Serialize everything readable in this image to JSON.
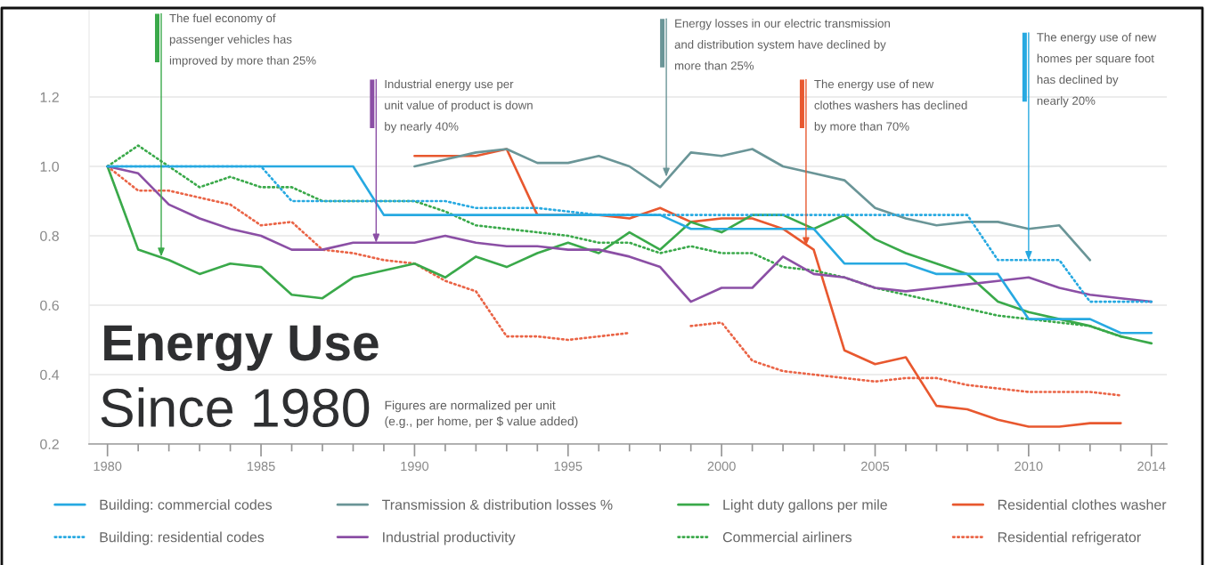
{
  "chart_data": {
    "type": "line",
    "title": "Energy Use",
    "subtitle": "Since 1980",
    "x": [
      1980,
      1981,
      1982,
      1983,
      1984,
      1985,
      1986,
      1987,
      1988,
      1989,
      1990,
      1991,
      1992,
      1993,
      1994,
      1995,
      1996,
      1997,
      1998,
      1999,
      2000,
      2001,
      2002,
      2003,
      2004,
      2005,
      2006,
      2007,
      2008,
      2009,
      2010,
      2011,
      2012,
      2013,
      2014
    ],
    "series": [
      {
        "name": "Building: commercial codes",
        "color": "#27a9e1",
        "line_style": "solid",
        "values": [
          1.0,
          1.0,
          1.0,
          1.0,
          1.0,
          1.0,
          1.0,
          1.0,
          1.0,
          0.86,
          0.86,
          0.86,
          0.86,
          0.86,
          0.86,
          0.86,
          0.86,
          0.86,
          0.86,
          0.82,
          0.82,
          0.82,
          0.82,
          0.82,
          0.72,
          0.72,
          0.72,
          0.69,
          0.69,
          0.69,
          0.56,
          0.56,
          0.56,
          0.52,
          0.52
        ]
      },
      {
        "name": "Building: residential codes",
        "color": "#27a9e1",
        "line_style": "dotted",
        "values": [
          1.0,
          1.0,
          1.0,
          1.0,
          1.0,
          1.0,
          0.9,
          0.9,
          0.9,
          0.9,
          0.9,
          0.9,
          0.88,
          0.88,
          0.88,
          0.87,
          0.86,
          0.86,
          0.86,
          0.86,
          0.86,
          0.86,
          0.86,
          0.86,
          0.86,
          0.86,
          0.86,
          0.86,
          0.86,
          0.73,
          0.73,
          0.73,
          0.61,
          0.61,
          0.61
        ]
      },
      {
        "name": "Transmission & distribution losses %",
        "color": "#6a9597",
        "line_style": "solid",
        "x": [
          1990,
          1991,
          1992,
          1993,
          1994,
          1995,
          1996,
          1997,
          1998,
          1999,
          2000,
          2001,
          2002,
          2003,
          2004,
          2005,
          2006,
          2007,
          2008,
          2009,
          2010,
          2011,
          2012
        ],
        "values": [
          1.0,
          1.02,
          1.04,
          1.05,
          1.01,
          1.01,
          1.03,
          1.0,
          0.94,
          1.04,
          1.03,
          1.05,
          1.0,
          0.98,
          0.96,
          0.88,
          0.85,
          0.83,
          0.84,
          0.84,
          0.82,
          0.83,
          0.73
        ]
      },
      {
        "name": "Industrial productivity",
        "color": "#8b4fa5",
        "line_style": "solid",
        "values": [
          1.0,
          0.98,
          0.89,
          0.85,
          0.82,
          0.8,
          0.76,
          0.76,
          0.78,
          0.78,
          0.78,
          0.8,
          0.78,
          0.77,
          0.77,
          0.76,
          0.76,
          0.74,
          0.71,
          0.61,
          0.65,
          0.65,
          0.74,
          0.69,
          0.68,
          0.65,
          0.64,
          0.65,
          0.66,
          0.67,
          0.68,
          0.65,
          0.63,
          0.62,
          0.61
        ]
      },
      {
        "name": "Light duty gallons per mile",
        "color": "#3aa94a",
        "line_style": "solid",
        "values": [
          1.0,
          0.76,
          0.73,
          0.69,
          0.72,
          0.71,
          0.63,
          0.62,
          0.68,
          0.7,
          0.72,
          0.68,
          0.74,
          0.71,
          0.75,
          0.78,
          0.75,
          0.81,
          0.76,
          0.84,
          0.81,
          0.86,
          0.86,
          0.82,
          0.86,
          0.79,
          0.75,
          0.72,
          0.69,
          0.61,
          0.58,
          0.56,
          0.54,
          0.51,
          0.49
        ]
      },
      {
        "name": "Commercial airliners",
        "color": "#3aa94a",
        "line_style": "dotted",
        "x": [
          1980,
          1981,
          1982,
          1983,
          1984,
          1985,
          1986,
          1987,
          1988,
          1989,
          1990,
          1991,
          1992,
          1993,
          1994,
          1995,
          1996,
          1997,
          1998,
          1999,
          2000,
          2001,
          2002,
          2003,
          2004,
          2005,
          2006,
          2007,
          2008,
          2009,
          2010,
          2011,
          2012,
          2013
        ],
        "values": [
          1.0,
          1.06,
          1.0,
          0.94,
          0.97,
          0.94,
          0.94,
          0.9,
          0.9,
          0.9,
          0.9,
          0.87,
          0.83,
          0.82,
          0.81,
          0.8,
          0.78,
          0.78,
          0.75,
          0.77,
          0.75,
          0.75,
          0.71,
          0.7,
          0.68,
          0.65,
          0.63,
          0.61,
          0.59,
          0.57,
          0.56,
          0.55,
          0.54,
          0.51
        ]
      },
      {
        "name": "Residential clothes washer",
        "color": "#e8582f",
        "line_style": "solid",
        "x": [
          1990,
          1991,
          1992,
          1993,
          1994,
          1995,
          1996,
          1997,
          1998,
          1999,
          2000,
          2001,
          2002,
          2003,
          2004,
          2005,
          2006,
          2007,
          2008,
          2009,
          2010,
          2011,
          2012,
          2013
        ],
        "values": [
          1.03,
          1.03,
          1.03,
          1.05,
          0.86,
          0.86,
          0.86,
          0.85,
          0.88,
          0.84,
          0.85,
          0.85,
          0.82,
          0.76,
          0.47,
          0.43,
          0.45,
          0.31,
          0.3,
          0.27,
          0.25,
          0.25,
          0.26,
          0.26
        ]
      },
      {
        "name": "Residential refrigerator",
        "color": "#ea6446",
        "line_style": "dotted",
        "x": [
          1980,
          1981,
          1982,
          1983,
          1984,
          1985,
          1986,
          1987,
          1988,
          1989,
          1990,
          1991,
          1992,
          1993,
          1994,
          1995,
          1996,
          1997,
          1998,
          1999,
          2000,
          2001,
          2002,
          2003,
          2004,
          2005,
          2006,
          2007,
          2008,
          2009,
          2010,
          2011,
          2012,
          2013
        ],
        "values": [
          1.0,
          0.93,
          0.93,
          0.91,
          0.89,
          0.83,
          0.84,
          0.76,
          0.75,
          0.73,
          0.72,
          0.67,
          0.64,
          0.51,
          0.51,
          0.5,
          0.51,
          0.52,
          null,
          0.54,
          0.55,
          0.44,
          0.41,
          0.4,
          0.39,
          0.38,
          0.39,
          0.39,
          0.37,
          0.36,
          0.35,
          0.35,
          0.35,
          0.34
        ]
      }
    ],
    "xlim": [
      1979.4,
      2014.5
    ],
    "ylim": [
      0.2,
      1.45
    ],
    "xticks": [
      1980,
      {
        "value": 1981,
        "label": null
      },
      {
        "value": 1982,
        "label": null
      },
      {
        "value": 1983,
        "label": null
      },
      {
        "value": 1984,
        "label": null
      },
      1985,
      {
        "value": 1986,
        "label": null
      },
      {
        "value": 1987,
        "label": null
      },
      {
        "value": 1988,
        "label": null
      },
      {
        "value": 1989,
        "label": null
      },
      1990,
      {
        "value": 1991,
        "label": null
      },
      {
        "value": 1992,
        "label": null
      },
      {
        "value": 1993,
        "label": null
      },
      {
        "value": 1994,
        "label": null
      },
      1995,
      {
        "value": 1996,
        "label": null
      },
      {
        "value": 1997,
        "label": null
      },
      {
        "value": 1998,
        "label": null
      },
      {
        "value": 1999,
        "label": null
      },
      2000,
      {
        "value": 2001,
        "label": null
      },
      {
        "value": 2002,
        "label": null
      },
      {
        "value": 2003,
        "label": null
      },
      {
        "value": 2004,
        "label": null
      },
      2005,
      {
        "value": 2006,
        "label": null
      },
      {
        "value": 2007,
        "label": null
      },
      {
        "value": 2008,
        "label": null
      },
      {
        "value": 2009,
        "label": null
      },
      2010,
      {
        "value": 2011,
        "label": null
      },
      {
        "value": 2012,
        "label": null
      },
      {
        "value": 2013,
        "label": null
      },
      2014
    ],
    "yticks": [
      0.2,
      0.4,
      0.6,
      0.8,
      {
        "value": 1.0,
        "label": "1.0"
      },
      1.2
    ],
    "grid": "y",
    "legend": "bottom",
    "annotations": [
      {
        "text": "The fuel economy of\npassenger vehicles has\nimproved by more than 25%",
        "x": 1981.75,
        "y": 0.74
      },
      {
        "text": "Industrial energy use per\nunit value of product is down\nby nearly 40%",
        "x": 1988.75,
        "y": 0.78
      },
      {
        "text": "Energy losses in our electric transmission\nand distribution system have declined by\nmore than 25%",
        "x": 1998.2,
        "y": 0.97
      },
      {
        "text": "The energy use of new\nclothes washers has declined\nby more than 70%",
        "x": 2002.75,
        "y": 0.77
      },
      {
        "text": "The energy use of new\nhomes per square foot\nhas declined by\nnearly 20%",
        "x": 2010.0,
        "y": 0.73
      },
      "Figures are normalized per unit\n(e.g., per home, per $ value added)"
    ]
  }
}
